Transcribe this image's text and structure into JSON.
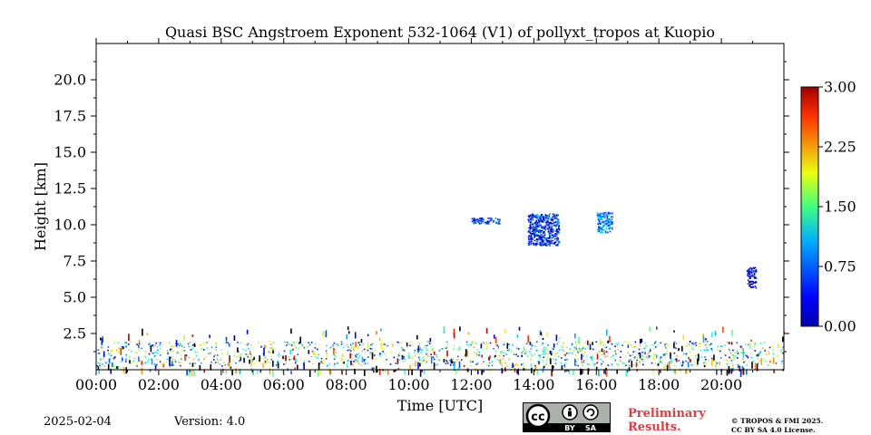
{
  "chart_data": {
    "type": "heatmap",
    "title": "Quasi BSC Angstroem Exponent 532-1064 (V1) of pollyxt_tropos at Kuopio",
    "xlabel": "Time [UTC]",
    "ylabel": "Height [km]",
    "x_tick_labels": [
      "00:00",
      "02:00",
      "04:00",
      "06:00",
      "08:00",
      "10:00",
      "12:00",
      "14:00",
      "16:00",
      "18:00",
      "20:00"
    ],
    "x_ticks_hours": [
      0,
      2,
      4,
      6,
      8,
      10,
      12,
      14,
      16,
      18,
      20
    ],
    "xlim_hours": [
      0,
      22.0
    ],
    "y_tick_labels": [
      "2.5",
      "5.0",
      "7.5",
      "10.0",
      "12.5",
      "15.0",
      "17.5",
      "20.0"
    ],
    "y_ticks_km": [
      2.5,
      5.0,
      7.5,
      10.0,
      12.5,
      15.0,
      17.5,
      20.0
    ],
    "ylim_km": [
      0,
      22.5
    ],
    "colorbar": {
      "min": 0.0,
      "max": 3.0,
      "tick_labels": [
        "0.00",
        "0.75",
        "1.50",
        "2.25",
        "3.00"
      ],
      "ticks": [
        0.0,
        0.75,
        1.5,
        2.25,
        3.0
      ],
      "colormap": "jet"
    },
    "features": [
      {
        "desc": "dense boundary-layer aerosol",
        "time_range_h": [
          0,
          22
        ],
        "height_range_km": [
          0.3,
          2.0
        ],
        "value_range": [
          0.3,
          2.2
        ]
      },
      {
        "desc": "scattered near-surface points",
        "time_range_h": [
          0,
          22
        ],
        "height_range_km": [
          0,
          3.0
        ],
        "value_range": [
          0.0,
          3.0
        ]
      },
      {
        "desc": "cloud patch",
        "time_range_h": [
          12.0,
          12.9
        ],
        "height_range_km": [
          10.1,
          10.5
        ],
        "value_range": [
          0.3,
          0.9
        ]
      },
      {
        "desc": "cloud patch",
        "time_range_h": [
          13.8,
          14.8
        ],
        "height_range_km": [
          8.6,
          10.8
        ],
        "value_range": [
          0.0,
          0.9
        ]
      },
      {
        "desc": "cloud patch",
        "time_range_h": [
          16.0,
          16.5
        ],
        "height_range_km": [
          9.5,
          10.9
        ],
        "value_range": [
          0.3,
          1.2
        ]
      },
      {
        "desc": "cloud patch",
        "time_range_h": [
          20.8,
          21.1
        ],
        "height_range_km": [
          5.7,
          7.1
        ],
        "value_range": [
          0.0,
          0.6
        ]
      }
    ]
  },
  "footer": {
    "date": "2025-02-04",
    "version": "Version: 4.0",
    "preliminary_line1": "Preliminary",
    "preliminary_line2": "Results.",
    "copyright_line1": "© TROPOS & FMI 2025.",
    "copyright_line2": "CC BY SA 4.0 License.",
    "cc_by_label": "BY",
    "cc_sa_label": "SA",
    "cc_main_label": "cc"
  },
  "colors": {
    "axis": "#000000",
    "preliminary": "#e8383d",
    "cc_badge_bg": "#aab2ab"
  }
}
